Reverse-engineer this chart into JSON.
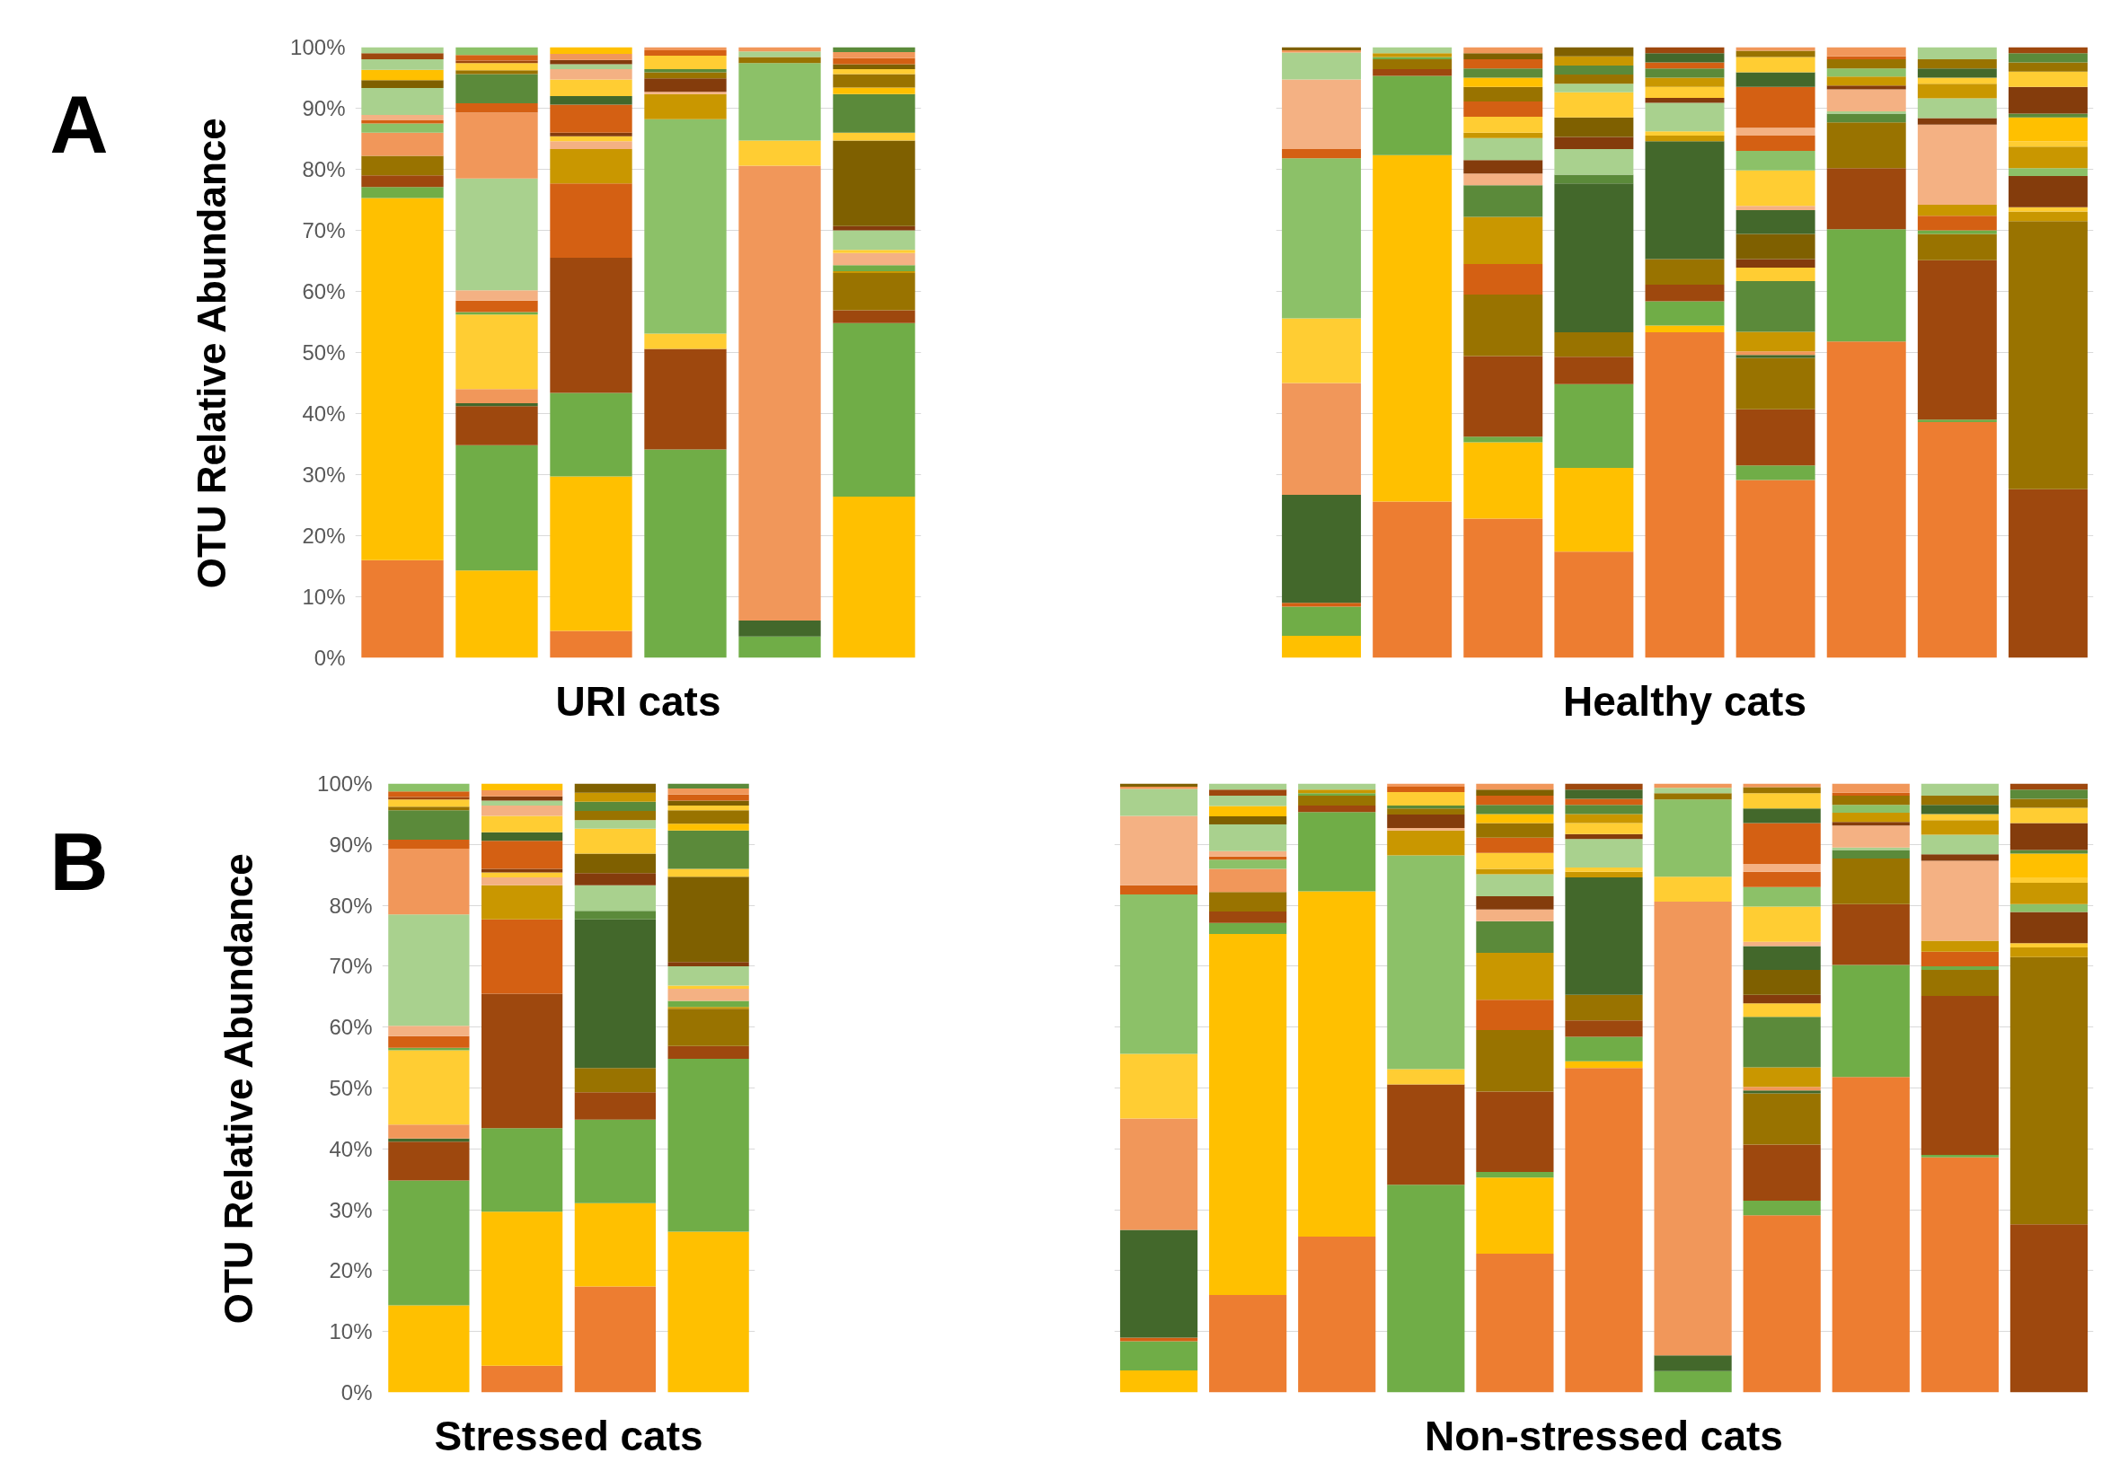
{
  "chart_data": [
    {
      "type": "bar",
      "stacked": true,
      "xlabel": "URI cats",
      "ylabel": "OTU Relative Abundance",
      "annotations": [
        "A"
      ],
      "grid": "y",
      "tick_labels": "y",
      "ylim": [
        0,
        100
      ],
      "yticks": [
        {
          "value": 0,
          "label": "0%"
        },
        {
          "value": 10,
          "label": "10%"
        },
        {
          "value": 20,
          "label": "20%"
        },
        {
          "value": 30,
          "label": "30%"
        },
        {
          "value": 40,
          "label": "40%"
        },
        {
          "value": 50,
          "label": "50%"
        },
        {
          "value": 60,
          "label": "60%"
        },
        {
          "value": 70,
          "label": "70%"
        },
        {
          "value": 80,
          "label": "80%"
        },
        {
          "value": 90,
          "label": "90%"
        },
        {
          "value": 100,
          "label": "100%"
        }
      ],
      "categories": [
        null,
        null,
        null,
        null,
        null,
        null
      ],
      "series": [
        {
          "values": [
            16.0,
            14.3,
            4.4,
            34.1,
            3.5,
            26.4
          ],
          "colors": [
            "#ed7d31",
            "#ffc000",
            "#ed7d31",
            "#70ad47",
            "#70ad47",
            "#ffc000"
          ]
        },
        {
          "values": [
            59.3,
            20.5,
            25.3,
            16.5,
            2.6,
            28.4
          ],
          "colors": [
            "#ffc000",
            "#70ad47",
            "#ffc000",
            "#9e480e",
            "#43682b",
            "#70ad47"
          ]
        },
        {
          "values": [
            1.8,
            6.4,
            13.7,
            2.5,
            74.5,
            2.1
          ],
          "colors": [
            "#70ad47",
            "#9e480e",
            "#70ad47",
            "#ffcd33",
            "#f1975a",
            "#9e480e"
          ]
        },
        {
          "values": [
            1.9,
            0.5,
            22.1,
            35.1,
            4.1,
            6.1
          ],
          "colors": [
            "#9e480e",
            "#43682b",
            "#9e480e",
            "#8cc168",
            "#ffcd33",
            "#997300"
          ]
        },
        {
          "values": [
            3.2,
            2.3,
            12.2,
            4.1,
            12.7,
            0.3
          ],
          "colors": [
            "#997300",
            "#f1975a",
            "#d46013",
            "#c99700",
            "#8cc168",
            "#c99700"
          ]
        },
        {
          "values": [
            3.8,
            12.2,
            5.6,
            0.4,
            1.0,
            1.0
          ],
          "colors": [
            "#f1975a",
            "#ffcd33",
            "#c99700",
            "#f4b183",
            "#997300",
            "#70ad47"
          ]
        },
        {
          "values": [
            1.5,
            0.4,
            1.3,
            2.2,
            0.9,
            2.0
          ],
          "colors": [
            "#8cc168",
            "#70ad47",
            "#f4b183",
            "#843c0c",
            "#a9d18e",
            "#f4b183"
          ]
        },
        {
          "values": [
            0.5,
            1.9,
            0.8,
            1.0,
            0.7,
            0.5
          ],
          "colors": [
            "#d46013",
            "#d46013",
            "#ffcd33",
            "#997300",
            "#f1975a",
            "#ffcd33"
          ]
        },
        {
          "values": [
            0.9,
            1.7,
            0.6,
            0.5,
            null,
            3.2
          ],
          "colors": [
            "#f4b183",
            "#f4b183",
            "#843c0c",
            "#5b8a3a",
            null,
            "#a9d18e"
          ]
        },
        {
          "values": [
            4.4,
            18.3,
            4.6,
            2.2,
            null,
            0.7
          ],
          "colors": [
            "#a9d18e",
            "#a9d18e",
            "#d46013",
            "#ffcd33",
            null,
            "#843c0c"
          ]
        },
        {
          "values": [
            1.3,
            10.8,
            1.4,
            0.9,
            null,
            14.0
          ],
          "colors": [
            "#7f6000",
            "#f1975a",
            "#43682b",
            "#d46013",
            null,
            "#7f6000"
          ]
        },
        {
          "values": [
            1.7,
            1.5,
            2.7,
            0.5,
            null,
            1.3
          ],
          "colors": [
            "#ffc000",
            "#d46013",
            "#ffcd33",
            "#f1975a",
            null,
            "#ffcd33"
          ]
        },
        {
          "values": [
            1.7,
            4.8,
            1.7,
            null,
            null,
            6.3
          ],
          "colors": [
            "#a9d18e",
            "#5b8a3a",
            "#f4b183",
            null,
            null,
            "#5b8a3a"
          ]
        },
        {
          "values": [
            1.0,
            0.6,
            0.8,
            null,
            null,
            1.1
          ],
          "colors": [
            "#9e480e",
            "#997300",
            "#a9d18e",
            null,
            null,
            "#ffc000"
          ]
        },
        {
          "values": [
            1.0,
            1.2,
            0.7,
            null,
            null,
            2.2
          ],
          "colors": [
            "#a9d18e",
            "#ffcd33",
            "#843c0c",
            null,
            null,
            "#997300"
          ]
        },
        {
          "values": [
            null,
            0.4,
            1.0,
            null,
            null,
            0.8
          ],
          "colors": [
            null,
            "#9e480e",
            "#f1975a",
            null,
            null,
            "#ffcd33"
          ]
        },
        {
          "values": [
            null,
            0.9,
            1.1,
            null,
            null,
            0.8
          ],
          "colors": [
            null,
            "#d46013",
            "#ffc000",
            null,
            null,
            "#7f6000"
          ]
        },
        {
          "values": [
            null,
            1.3,
            null,
            null,
            null,
            1.0
          ],
          "colors": [
            null,
            "#8cc168",
            null,
            null,
            null,
            "#d46013"
          ]
        },
        {
          "values": [
            null,
            null,
            null,
            null,
            null,
            1.0
          ],
          "colors": [
            null,
            null,
            null,
            null,
            null,
            "#f1975a"
          ]
        },
        {
          "values": [
            null,
            null,
            null,
            null,
            null,
            0.8
          ],
          "colors": [
            null,
            null,
            null,
            null,
            null,
            "#5b8a3a"
          ]
        }
      ]
    },
    {
      "type": "bar",
      "stacked": true,
      "xlabel": "Healthy cats",
      "grid": "y",
      "tick_labels": false,
      "ylim": [
        0,
        100
      ],
      "yticks": [
        {
          "value": 0,
          "label": null
        },
        {
          "value": 10,
          "label": null
        },
        {
          "value": 20,
          "label": null
        },
        {
          "value": 30,
          "label": null
        },
        {
          "value": 40,
          "label": null
        },
        {
          "value": 50,
          "label": null
        },
        {
          "value": 60,
          "label": null
        },
        {
          "value": 70,
          "label": null
        },
        {
          "value": 80,
          "label": null
        },
        {
          "value": 90,
          "label": null
        },
        {
          "value": 100,
          "label": null
        }
      ],
      "categories": [
        null,
        null,
        null,
        null,
        null,
        null,
        null,
        null,
        null
      ],
      "series": [
        {
          "values": [
            3.6,
            25.6,
            22.8,
            17.4,
            53.3,
            29.1,
            51.8,
            38.6,
            27.6
          ],
          "colors": [
            "#ffc000",
            "#ed7d31",
            "#ed7d31",
            "#ed7d31",
            "#ed7d31",
            "#ed7d31",
            "#ed7d31",
            "#ed7d31",
            "#9e480e"
          ]
        },
        {
          "values": [
            4.8,
            56.7,
            12.5,
            13.7,
            1.1,
            2.4,
            18.4,
            0.4,
            43.9
          ],
          "colors": [
            "#70ad47",
            "#ffc000",
            "#ffc000",
            "#ffc000",
            "#ffc000",
            "#70ad47",
            "#70ad47",
            "#70ad47",
            "#997300"
          ]
        },
        {
          "values": [
            0.6,
            13.0,
            0.9,
            13.7,
            4.0,
            9.2,
            10.0,
            26.1,
            1.6
          ],
          "colors": [
            "#d46013",
            "#70ad47",
            "#70ad47",
            "#70ad47",
            "#70ad47",
            "#9e480e",
            "#9e480e",
            "#9e480e",
            "#c99700"
          ]
        },
        {
          "values": [
            17.7,
            1.1,
            13.2,
            4.5,
            2.7,
            8.4,
            7.5,
            4.3,
            0.7
          ],
          "colors": [
            "#43682b",
            "#9e480e",
            "#9e480e",
            "#9e480e",
            "#9e480e",
            "#997300",
            "#997300",
            "#997300",
            "#ffcd33"
          ]
        },
        {
          "values": [
            18.3,
            1.6,
            10.1,
            4.0,
            4.2,
            0.5,
            1.4,
            0.6,
            5.1
          ],
          "colors": [
            "#f1975a",
            "#997300",
            "#997300",
            "#997300",
            "#997300",
            "#43682b",
            "#5b8a3a",
            "#70ad47",
            "#843c0c"
          ]
        },
        {
          "values": [
            10.6,
            0.4,
            5.0,
            24.4,
            19.3,
            0.6,
            0.4,
            2.4,
            1.3
          ],
          "colors": [
            "#ffcd33",
            "#70ad47",
            "#d46013",
            "#43682b",
            "#43682b",
            "#f1975a",
            "#a9d18e",
            "#d46013",
            "#8cc168"
          ]
        },
        {
          "values": [
            26.2,
            0.6,
            7.7,
            1.4,
            0.9,
            3.2,
            3.6,
            1.8,
            3.5
          ],
          "colors": [
            "#8cc168",
            "#c99700",
            "#c99700",
            "#5b8a3a",
            "#c99700",
            "#c99700",
            "#f4b183",
            "#c99700",
            "#c99700"
          ]
        },
        {
          "values": [
            1.5,
            1.0,
            5.2,
            4.2,
            0.7,
            8.3,
            0.6,
            13.1,
            0.9
          ],
          "colors": [
            "#d46013",
            "#a9d18e",
            "#5b8a3a",
            "#a9d18e",
            "#ffcd33",
            "#5b8a3a",
            "#843c0c",
            "#f4b183",
            "#ffcd33"
          ]
        },
        {
          "values": [
            11.4,
            null,
            1.9,
            2.0,
            4.7,
            2.2,
            1.5,
            1.1,
            3.9
          ],
          "colors": [
            "#f4b183",
            null,
            "#f4b183",
            "#843c0c",
            "#a9d18e",
            "#ffcd33",
            "#c99700",
            "#843c0c",
            "#ffc000"
          ]
        },
        {
          "values": [
            4.4,
            null,
            2.2,
            3.2,
            0.8,
            1.4,
            1.3,
            3.2,
            0.6
          ],
          "colors": [
            "#a9d18e",
            null,
            "#843c0c",
            "#7f6000",
            "#843c0c",
            "#843c0c",
            "#8cc168",
            "#a9d18e",
            "#5b8a3a"
          ]
        },
        {
          "values": [
            0.4,
            null,
            3.6,
            4.1,
            1.8,
            4.1,
            1.5,
            2.4,
            4.4
          ],
          "colors": [
            "#f1975a",
            null,
            "#a9d18e",
            "#ffcd33",
            "#ffcd33",
            "#7f6000",
            "#997300",
            "#c99700",
            "#843c0c"
          ]
        },
        {
          "values": [
            0.5,
            null,
            0.9,
            1.4,
            1.5,
            3.9,
            0.5,
            1.0,
            2.5
          ],
          "colors": [
            "#7f6000",
            null,
            "#c99700",
            "#a9d18e",
            "#c99700",
            "#43682b",
            "#d46013",
            "#ffcd33",
            "#ffcd33"
          ]
        },
        {
          "values": [
            null,
            null,
            2.6,
            1.5,
            1.5,
            0.7,
            1.5,
            1.5,
            1.5
          ],
          "colors": [
            null,
            null,
            "#ffcd33",
            "#997300",
            "#5b8a3a",
            "#f4b183",
            "#f1975a",
            "#43682b",
            "#997300"
          ]
        },
        {
          "values": [
            null,
            null,
            2.5,
            1.5,
            1.0,
            5.8,
            null,
            1.5,
            1.5
          ],
          "colors": [
            null,
            null,
            "#d46013",
            "#5b8a3a",
            "#d46013",
            "#ffcd33",
            null,
            "#997300",
            "#5b8a3a"
          ]
        },
        {
          "values": [
            null,
            null,
            2.4,
            1.5,
            1.5,
            3.2,
            null,
            2.0,
            1.0
          ],
          "colors": [
            null,
            null,
            "#997300",
            "#c99700",
            "#43682b",
            "#8cc168",
            null,
            "#a9d18e",
            "#9e480e"
          ]
        },
        {
          "values": [
            null,
            null,
            1.5,
            1.5,
            1.0,
            2.5,
            null,
            null,
            null
          ],
          "colors": [
            null,
            null,
            "#ffc000",
            "#7f6000",
            "#9e480e",
            "#d46013",
            null,
            null,
            null
          ]
        },
        {
          "values": [
            null,
            null,
            1.5,
            null,
            null,
            1.3,
            null,
            null,
            null
          ],
          "colors": [
            null,
            null,
            "#5b8a3a",
            null,
            null,
            "#f4b183",
            null,
            null,
            null
          ]
        },
        {
          "values": [
            null,
            null,
            1.5,
            null,
            null,
            6.7,
            null,
            null,
            null
          ],
          "colors": [
            null,
            null,
            "#d46013",
            null,
            null,
            "#d46013",
            null,
            null,
            null
          ]
        },
        {
          "values": [
            null,
            null,
            1.0,
            null,
            null,
            2.4,
            null,
            null,
            null
          ],
          "colors": [
            null,
            null,
            "#7f6000",
            null,
            null,
            "#43682b",
            null,
            null,
            null
          ]
        },
        {
          "values": [
            null,
            null,
            1.0,
            null,
            null,
            2.5,
            null,
            null,
            null
          ],
          "colors": [
            null,
            null,
            "#f1975a",
            null,
            null,
            "#ffcd33",
            null,
            null,
            null
          ]
        },
        {
          "values": [
            null,
            null,
            null,
            null,
            null,
            1.0,
            null,
            null,
            null
          ],
          "colors": [
            null,
            null,
            null,
            null,
            null,
            "#997300",
            null,
            null,
            null
          ]
        },
        {
          "values": [
            null,
            null,
            null,
            null,
            null,
            0.6,
            null,
            null,
            null
          ],
          "colors": [
            null,
            null,
            null,
            null,
            null,
            "#f1975a",
            null,
            null,
            null
          ]
        }
      ]
    },
    {
      "type": "bar",
      "stacked": true,
      "xlabel": "Stressed cats",
      "ylabel": "OTU Relative Abundance",
      "annotations": [
        "B"
      ],
      "grid": "y",
      "tick_labels": "y",
      "ylim": [
        0,
        100
      ],
      "yticks": [
        {
          "value": 0,
          "label": "0%"
        },
        {
          "value": 10,
          "label": "10%"
        },
        {
          "value": 20,
          "label": "20%"
        },
        {
          "value": 30,
          "label": "30%"
        },
        {
          "value": 40,
          "label": "40%"
        },
        {
          "value": 50,
          "label": "50%"
        },
        {
          "value": 60,
          "label": "60%"
        },
        {
          "value": 70,
          "label": "70%"
        },
        {
          "value": 80,
          "label": "80%"
        },
        {
          "value": 90,
          "label": "90%"
        },
        {
          "value": 100,
          "label": "100%"
        }
      ],
      "categories": [
        null,
        null,
        null,
        null
      ],
      "series": [
        {
          "values": [
            14.3,
            4.4,
            17.4,
            26.4
          ],
          "colors": [
            "#ffc000",
            "#ed7d31",
            "#ed7d31",
            "#ffc000"
          ]
        },
        {
          "values": [
            20.5,
            25.3,
            13.7,
            28.4
          ],
          "colors": [
            "#70ad47",
            "#ffc000",
            "#ffc000",
            "#70ad47"
          ]
        },
        {
          "values": [
            6.4,
            13.7,
            13.7,
            2.1
          ],
          "colors": [
            "#9e480e",
            "#70ad47",
            "#70ad47",
            "#9e480e"
          ]
        },
        {
          "values": [
            0.5,
            22.1,
            4.5,
            6.1
          ],
          "colors": [
            "#43682b",
            "#9e480e",
            "#9e480e",
            "#997300"
          ]
        },
        {
          "values": [
            2.3,
            12.2,
            4.0,
            0.3
          ],
          "colors": [
            "#f1975a",
            "#d46013",
            "#997300",
            "#c99700"
          ]
        },
        {
          "values": [
            12.2,
            5.6,
            24.4,
            1.0
          ],
          "colors": [
            "#ffcd33",
            "#c99700",
            "#43682b",
            "#70ad47"
          ]
        },
        {
          "values": [
            0.4,
            1.3,
            1.4,
            2.0
          ],
          "colors": [
            "#70ad47",
            "#f4b183",
            "#5b8a3a",
            "#f4b183"
          ]
        },
        {
          "values": [
            1.9,
            0.8,
            4.2,
            0.5
          ],
          "colors": [
            "#d46013",
            "#ffcd33",
            "#a9d18e",
            "#ffcd33"
          ]
        },
        {
          "values": [
            1.7,
            0.6,
            2.0,
            3.2
          ],
          "colors": [
            "#f4b183",
            "#843c0c",
            "#843c0c",
            "#a9d18e"
          ]
        },
        {
          "values": [
            18.3,
            4.6,
            3.2,
            0.7
          ],
          "colors": [
            "#a9d18e",
            "#d46013",
            "#7f6000",
            "#843c0c"
          ]
        },
        {
          "values": [
            10.8,
            1.4,
            4.1,
            14.0
          ],
          "colors": [
            "#f1975a",
            "#43682b",
            "#ffcd33",
            "#7f6000"
          ]
        },
        {
          "values": [
            1.5,
            2.7,
            1.4,
            1.3
          ],
          "colors": [
            "#d46013",
            "#ffcd33",
            "#a9d18e",
            "#ffcd33"
          ]
        },
        {
          "values": [
            4.8,
            1.7,
            1.5,
            6.3
          ],
          "colors": [
            "#5b8a3a",
            "#f4b183",
            "#997300",
            "#5b8a3a"
          ]
        },
        {
          "values": [
            0.6,
            0.8,
            1.5,
            1.1
          ],
          "colors": [
            "#997300",
            "#a9d18e",
            "#5b8a3a",
            "#ffc000"
          ]
        },
        {
          "values": [
            1.2,
            0.7,
            1.5,
            2.2
          ],
          "colors": [
            "#ffcd33",
            "#843c0c",
            "#c99700",
            "#997300"
          ]
        },
        {
          "values": [
            0.4,
            1.0,
            1.5,
            0.8
          ],
          "colors": [
            "#9e480e",
            "#f1975a",
            "#7f6000",
            "#ffcd33"
          ]
        },
        {
          "values": [
            0.9,
            1.1,
            null,
            0.8
          ],
          "colors": [
            "#d46013",
            "#ffc000",
            null,
            "#7f6000"
          ]
        },
        {
          "values": [
            1.3,
            null,
            null,
            1.0
          ],
          "colors": [
            "#8cc168",
            null,
            null,
            "#d46013"
          ]
        },
        {
          "values": [
            null,
            null,
            null,
            1.0
          ],
          "colors": [
            null,
            null,
            null,
            "#f1975a"
          ]
        },
        {
          "values": [
            null,
            null,
            null,
            0.8
          ],
          "colors": [
            null,
            null,
            null,
            "#5b8a3a"
          ]
        }
      ]
    },
    {
      "type": "bar",
      "stacked": true,
      "xlabel": "Non-stressed cats",
      "grid": "y",
      "tick_labels": false,
      "ylim": [
        0,
        100
      ],
      "yticks": [
        {
          "value": 0,
          "label": null
        },
        {
          "value": 10,
          "label": null
        },
        {
          "value": 20,
          "label": null
        },
        {
          "value": 30,
          "label": null
        },
        {
          "value": 40,
          "label": null
        },
        {
          "value": 50,
          "label": null
        },
        {
          "value": 60,
          "label": null
        },
        {
          "value": 70,
          "label": null
        },
        {
          "value": 80,
          "label": null
        },
        {
          "value": 90,
          "label": null
        },
        {
          "value": 100,
          "label": null
        }
      ],
      "categories": [
        null,
        null,
        null,
        null,
        null,
        null,
        null,
        null,
        null,
        null,
        null
      ],
      "series": [
        {
          "values": [
            3.6,
            16.0,
            25.6,
            34.1,
            22.8,
            53.3,
            3.5,
            29.1,
            51.8,
            38.6,
            27.6
          ],
          "colors": [
            "#ffc000",
            "#ed7d31",
            "#ed7d31",
            "#70ad47",
            "#ed7d31",
            "#ed7d31",
            "#70ad47",
            "#ed7d31",
            "#ed7d31",
            "#ed7d31",
            "#9e480e"
          ]
        },
        {
          "values": [
            4.8,
            59.3,
            56.7,
            16.5,
            12.5,
            1.1,
            2.6,
            2.4,
            18.4,
            0.4,
            43.9
          ],
          "colors": [
            "#70ad47",
            "#ffc000",
            "#ffc000",
            "#9e480e",
            "#ffc000",
            "#ffc000",
            "#43682b",
            "#70ad47",
            "#70ad47",
            "#70ad47",
            "#997300"
          ]
        },
        {
          "values": [
            0.6,
            1.8,
            13.0,
            2.5,
            0.9,
            4.0,
            74.5,
            9.2,
            10.0,
            26.1,
            1.6
          ],
          "colors": [
            "#d46013",
            "#70ad47",
            "#70ad47",
            "#ffcd33",
            "#70ad47",
            "#70ad47",
            "#f1975a",
            "#9e480e",
            "#9e480e",
            "#9e480e",
            "#c99700"
          ]
        },
        {
          "values": [
            17.7,
            1.9,
            1.1,
            35.1,
            13.2,
            2.7,
            4.1,
            8.4,
            7.5,
            4.3,
            0.7
          ],
          "colors": [
            "#43682b",
            "#9e480e",
            "#9e480e",
            "#8cc168",
            "#9e480e",
            "#9e480e",
            "#ffcd33",
            "#997300",
            "#997300",
            "#997300",
            "#ffcd33"
          ]
        },
        {
          "values": [
            18.3,
            3.2,
            1.6,
            4.1,
            10.1,
            4.2,
            12.7,
            0.5,
            1.4,
            0.6,
            5.1
          ],
          "colors": [
            "#f1975a",
            "#997300",
            "#997300",
            "#c99700",
            "#997300",
            "#997300",
            "#8cc168",
            "#43682b",
            "#5b8a3a",
            "#70ad47",
            "#843c0c"
          ]
        },
        {
          "values": [
            10.6,
            3.8,
            0.4,
            0.4,
            5.0,
            19.3,
            1.0,
            0.6,
            0.4,
            2.4,
            1.3
          ],
          "colors": [
            "#ffcd33",
            "#f1975a",
            "#70ad47",
            "#f4b183",
            "#d46013",
            "#43682b",
            "#997300",
            "#f1975a",
            "#a9d18e",
            "#d46013",
            "#8cc168"
          ]
        },
        {
          "values": [
            26.2,
            1.5,
            0.6,
            2.2,
            7.7,
            0.9,
            0.9,
            3.2,
            3.6,
            1.8,
            3.5
          ],
          "colors": [
            "#8cc168",
            "#8cc168",
            "#c99700",
            "#843c0c",
            "#c99700",
            "#c99700",
            "#a9d18e",
            "#c99700",
            "#f4b183",
            "#c99700",
            "#c99700"
          ]
        },
        {
          "values": [
            1.5,
            0.5,
            1.0,
            1.0,
            5.2,
            0.7,
            0.7,
            8.3,
            0.6,
            13.1,
            0.9
          ],
          "colors": [
            "#d46013",
            "#d46013",
            "#a9d18e",
            "#997300",
            "#5b8a3a",
            "#ffcd33",
            "#f1975a",
            "#5b8a3a",
            "#843c0c",
            "#f4b183",
            "#ffcd33"
          ]
        },
        {
          "values": [
            11.4,
            0.9,
            null,
            0.5,
            1.9,
            4.7,
            null,
            2.2,
            1.5,
            1.1,
            3.9
          ],
          "colors": [
            "#f4b183",
            "#f4b183",
            null,
            "#5b8a3a",
            "#f4b183",
            "#a9d18e",
            null,
            "#ffcd33",
            "#c99700",
            "#843c0c",
            "#ffc000"
          ]
        },
        {
          "values": [
            4.4,
            4.4,
            null,
            2.2,
            2.2,
            0.8,
            null,
            1.4,
            1.3,
            3.2,
            0.6
          ],
          "colors": [
            "#a9d18e",
            "#a9d18e",
            null,
            "#ffcd33",
            "#843c0c",
            "#843c0c",
            null,
            "#843c0c",
            "#8cc168",
            "#a9d18e",
            "#5b8a3a"
          ]
        },
        {
          "values": [
            0.4,
            1.3,
            null,
            0.9,
            3.6,
            1.8,
            null,
            4.1,
            1.5,
            2.4,
            4.4
          ],
          "colors": [
            "#f1975a",
            "#7f6000",
            null,
            "#d46013",
            "#a9d18e",
            "#ffcd33",
            null,
            "#7f6000",
            "#997300",
            "#c99700",
            "#843c0c"
          ]
        },
        {
          "values": [
            0.5,
            1.7,
            null,
            0.5,
            0.9,
            1.5,
            null,
            3.9,
            0.5,
            1.0,
            2.5
          ],
          "colors": [
            "#7f6000",
            "#ffc000",
            null,
            "#f1975a",
            "#c99700",
            "#c99700",
            null,
            "#43682b",
            "#d46013",
            "#ffcd33",
            "#ffcd33"
          ]
        },
        {
          "values": [
            null,
            1.7,
            null,
            null,
            2.6,
            1.5,
            null,
            0.7,
            1.5,
            1.5,
            1.5
          ],
          "colors": [
            null,
            "#a9d18e",
            null,
            null,
            "#ffcd33",
            "#5b8a3a",
            null,
            "#f4b183",
            "#f1975a",
            "#43682b",
            "#997300"
          ]
        },
        {
          "values": [
            null,
            1.0,
            null,
            null,
            2.5,
            1.0,
            null,
            5.8,
            null,
            1.5,
            1.5
          ],
          "colors": [
            null,
            "#9e480e",
            null,
            null,
            "#d46013",
            "#d46013",
            null,
            "#ffcd33",
            null,
            "#997300",
            "#5b8a3a"
          ]
        },
        {
          "values": [
            null,
            1.0,
            null,
            null,
            2.4,
            1.5,
            null,
            3.2,
            null,
            2.0,
            1.0
          ],
          "colors": [
            null,
            "#a9d18e",
            null,
            null,
            "#997300",
            "#43682b",
            null,
            "#8cc168",
            null,
            "#a9d18e",
            "#9e480e"
          ]
        },
        {
          "values": [
            null,
            null,
            null,
            null,
            1.5,
            1.0,
            null,
            2.5,
            null,
            null,
            null
          ],
          "colors": [
            null,
            null,
            null,
            null,
            "#ffc000",
            "#9e480e",
            null,
            "#d46013",
            null,
            null,
            null
          ]
        },
        {
          "values": [
            null,
            null,
            null,
            null,
            1.5,
            null,
            null,
            1.3,
            null,
            null,
            null
          ],
          "colors": [
            null,
            null,
            null,
            null,
            "#5b8a3a",
            null,
            null,
            "#f4b183",
            null,
            null,
            null
          ]
        },
        {
          "values": [
            null,
            null,
            null,
            null,
            1.5,
            null,
            null,
            6.7,
            null,
            null,
            null
          ],
          "colors": [
            null,
            null,
            null,
            null,
            "#d46013",
            null,
            null,
            "#d46013",
            null,
            null,
            null
          ]
        },
        {
          "values": [
            null,
            null,
            null,
            null,
            1.0,
            null,
            null,
            2.4,
            null,
            null,
            null
          ],
          "colors": [
            null,
            null,
            null,
            null,
            "#7f6000",
            null,
            null,
            "#43682b",
            null,
            null,
            null
          ]
        },
        {
          "values": [
            null,
            null,
            null,
            null,
            1.0,
            null,
            null,
            2.5,
            null,
            null,
            null
          ],
          "colors": [
            null,
            null,
            null,
            null,
            "#f1975a",
            null,
            null,
            "#ffcd33",
            null,
            null,
            null
          ]
        },
        {
          "values": [
            null,
            null,
            null,
            null,
            null,
            null,
            null,
            1.0,
            null,
            null,
            null
          ],
          "colors": [
            null,
            null,
            null,
            null,
            null,
            null,
            null,
            "#997300",
            null,
            null,
            null
          ]
        },
        {
          "values": [
            null,
            null,
            null,
            null,
            null,
            null,
            null,
            0.6,
            null,
            null,
            null
          ],
          "colors": [
            null,
            null,
            null,
            null,
            null,
            null,
            null,
            "#f1975a",
            null,
            null,
            null
          ]
        }
      ]
    }
  ]
}
